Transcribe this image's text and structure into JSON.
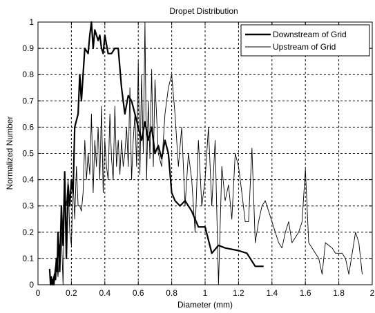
{
  "chart_data": {
    "type": "line",
    "title": "Dropet Distribution",
    "xlabel": "Diameter (mm)",
    "ylabel": "Normalized Number",
    "xlim": [
      0,
      2
    ],
    "ylim": [
      0,
      1
    ],
    "xticks": [
      0,
      0.2,
      0.4,
      0.6,
      0.8,
      1,
      1.2,
      1.4,
      1.6,
      1.8,
      2
    ],
    "yticks": [
      0,
      0.1,
      0.2,
      0.3,
      0.4,
      0.5,
      0.6,
      0.7,
      0.8,
      0.9,
      1
    ],
    "xtick_labels": [
      "0",
      "0.2",
      "0.4",
      "0.6",
      "0.8",
      "1",
      "1.2",
      "1.4",
      "1.6",
      "1.8",
      "2"
    ],
    "ytick_labels": [
      "0",
      "0.1",
      "0.2",
      "0.3",
      "0.4",
      "0.5",
      "0.6",
      "0.7",
      "0.8",
      "0.9",
      "1"
    ],
    "grid": true,
    "legend_position": "top-right",
    "series": [
      {
        "name": "Downstream of Grid",
        "style": "thick",
        "color": "#000000",
        "x": [
          0.07,
          0.075,
          0.08,
          0.085,
          0.09,
          0.095,
          0.1,
          0.105,
          0.11,
          0.115,
          0.12,
          0.13,
          0.14,
          0.15,
          0.16,
          0.17,
          0.18,
          0.19,
          0.2,
          0.21,
          0.22,
          0.24,
          0.25,
          0.26,
          0.27,
          0.28,
          0.3,
          0.31,
          0.32,
          0.33,
          0.34,
          0.35,
          0.36,
          0.37,
          0.38,
          0.39,
          0.4,
          0.42,
          0.44,
          0.46,
          0.48,
          0.5,
          0.52,
          0.54,
          0.56,
          0.58,
          0.6,
          0.62,
          0.64,
          0.66,
          0.68,
          0.7,
          0.72,
          0.74,
          0.76,
          0.78,
          0.8,
          0.82,
          0.85,
          0.88,
          0.92,
          0.96,
          1.0,
          1.04,
          1.08,
          1.12,
          1.2,
          1.25,
          1.3,
          1.35
        ],
        "y": [
          0.06,
          0.0,
          0.03,
          0.0,
          0.02,
          0.0,
          0.04,
          0.02,
          0.1,
          0.05,
          0.2,
          0.05,
          0.3,
          0.15,
          0.43,
          0.1,
          0.38,
          0.3,
          0.4,
          0.35,
          0.6,
          0.65,
          0.8,
          0.7,
          0.8,
          0.9,
          0.88,
          0.95,
          1.0,
          0.9,
          0.97,
          0.95,
          0.93,
          0.95,
          0.9,
          0.88,
          0.95,
          0.88,
          0.88,
          0.9,
          0.9,
          0.75,
          0.65,
          0.72,
          0.7,
          0.65,
          0.6,
          0.55,
          0.62,
          0.55,
          0.6,
          0.5,
          0.53,
          0.48,
          0.55,
          0.5,
          0.35,
          0.32,
          0.3,
          0.32,
          0.28,
          0.22,
          0.22,
          0.12,
          0.15,
          0.14,
          0.13,
          0.12,
          0.07,
          0.07
        ]
      },
      {
        "name": "Upstream of Grid",
        "style": "thin",
        "color": "#000000",
        "x": [
          0.07,
          0.08,
          0.09,
          0.1,
          0.11,
          0.12,
          0.13,
          0.14,
          0.15,
          0.16,
          0.17,
          0.18,
          0.19,
          0.2,
          0.21,
          0.22,
          0.23,
          0.24,
          0.25,
          0.26,
          0.27,
          0.28,
          0.29,
          0.3,
          0.31,
          0.32,
          0.33,
          0.34,
          0.35,
          0.36,
          0.37,
          0.38,
          0.39,
          0.4,
          0.41,
          0.42,
          0.43,
          0.44,
          0.45,
          0.46,
          0.47,
          0.48,
          0.49,
          0.5,
          0.51,
          0.52,
          0.53,
          0.54,
          0.55,
          0.56,
          0.57,
          0.58,
          0.59,
          0.6,
          0.61,
          0.62,
          0.63,
          0.64,
          0.65,
          0.66,
          0.67,
          0.68,
          0.69,
          0.7,
          0.72,
          0.74,
          0.76,
          0.78,
          0.8,
          0.82,
          0.84,
          0.86,
          0.88,
          0.9,
          0.92,
          0.94,
          0.96,
          0.98,
          1.0,
          1.02,
          1.04,
          1.06,
          1.08,
          1.1,
          1.12,
          1.14,
          1.16,
          1.18,
          1.2,
          1.22,
          1.24,
          1.26,
          1.28,
          1.3,
          1.32,
          1.34,
          1.36,
          1.38,
          1.4,
          1.42,
          1.44,
          1.46,
          1.48,
          1.5,
          1.52,
          1.54,
          1.56,
          1.58,
          1.6,
          1.62,
          1.64,
          1.66,
          1.68,
          1.7,
          1.72,
          1.74,
          1.76,
          1.78,
          1.8,
          1.82,
          1.84,
          1.86,
          1.88,
          1.9,
          1.92,
          1.94
        ],
        "y": [
          0.0,
          0.0,
          0.02,
          0.05,
          0.1,
          0.03,
          0.15,
          0.2,
          0.0,
          0.35,
          0.3,
          0.4,
          0.2,
          0.15,
          0.4,
          0.25,
          0.45,
          0.3,
          0.3,
          0.28,
          0.35,
          0.55,
          0.4,
          0.5,
          0.42,
          0.65,
          0.35,
          0.55,
          0.45,
          0.6,
          0.4,
          0.68,
          0.35,
          0.55,
          0.45,
          0.4,
          0.65,
          0.48,
          0.4,
          0.68,
          0.45,
          0.55,
          0.42,
          0.55,
          0.45,
          0.5,
          0.6,
          0.45,
          0.75,
          0.4,
          0.55,
          0.65,
          0.45,
          0.85,
          0.42,
          0.8,
          0.5,
          1.0,
          0.4,
          0.7,
          0.48,
          0.82,
          0.45,
          0.78,
          0.5,
          0.45,
          0.65,
          0.75,
          0.8,
          0.65,
          0.45,
          0.6,
          0.3,
          0.5,
          0.4,
          0.2,
          0.55,
          0.3,
          0.4,
          0.6,
          0.3,
          0.55,
          0.0,
          0.45,
          0.32,
          0.38,
          0.25,
          0.5,
          0.45,
          0.35,
          0.24,
          0.24,
          0.52,
          0.16,
          0.24,
          0.3,
          0.32,
          0.28,
          0.24,
          0.2,
          0.16,
          0.14,
          0.2,
          0.24,
          0.16,
          0.18,
          0.2,
          0.24,
          0.44,
          0.16,
          0.14,
          0.12,
          0.1,
          0.04,
          0.16,
          0.15,
          0.14,
          0.12,
          0.12,
          0.12,
          0.1,
          0.04,
          0.12,
          0.2,
          0.16,
          0.04
        ]
      }
    ]
  }
}
